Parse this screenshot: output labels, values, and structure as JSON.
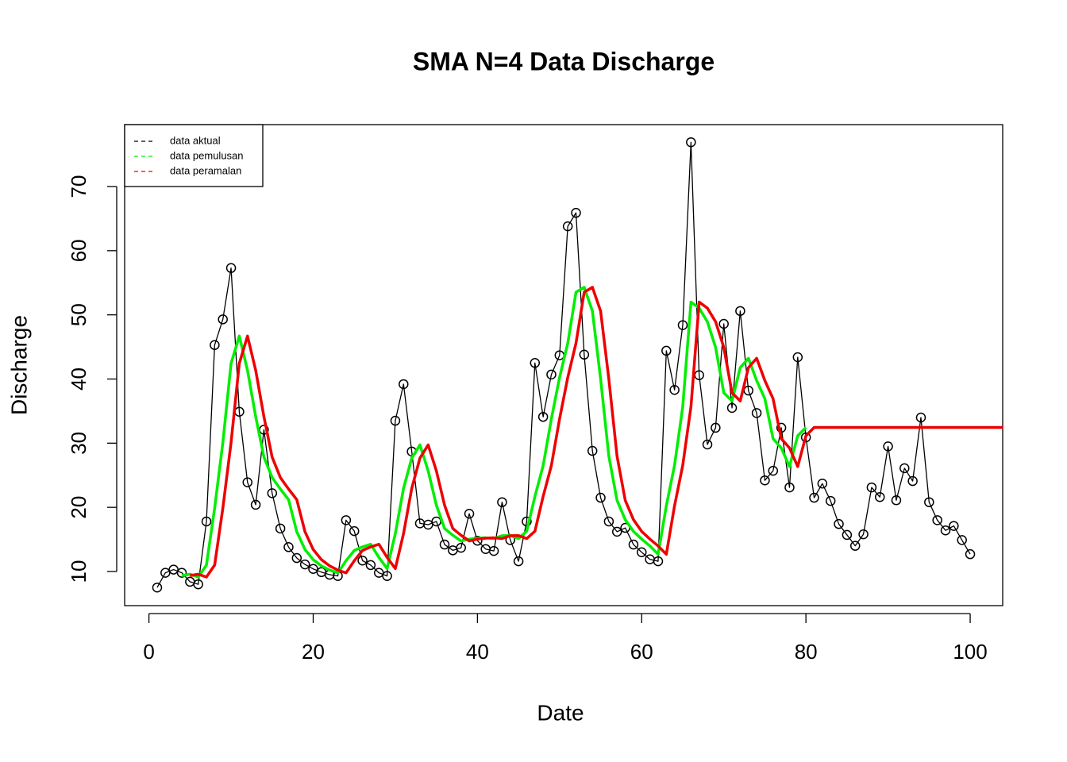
{
  "chart_data": {
    "type": "line",
    "title": "SMA N=4 Data Discharge",
    "x_label": "Date",
    "y_label": "Discharge",
    "xlim": [
      -2.96,
      103.96
    ],
    "ylim": [
      4.68,
      79.65
    ],
    "xticks": [
      0,
      20,
      40,
      60,
      80,
      100
    ],
    "yticks": [
      10,
      20,
      30,
      40,
      50,
      60,
      70
    ],
    "legend_position": "top-left",
    "series": [
      {
        "name": "data aktual",
        "color": "#000000",
        "markers": true,
        "x": [
          1,
          2,
          3,
          4,
          5,
          6,
          7,
          8,
          9,
          10,
          11,
          12,
          13,
          14,
          15,
          16,
          17,
          18,
          19,
          20,
          21,
          22,
          23,
          24,
          25,
          26,
          27,
          28,
          29,
          30,
          31,
          32,
          33,
          34,
          35,
          36,
          37,
          38,
          39,
          40,
          41,
          42,
          43,
          44,
          45,
          46,
          47,
          48,
          49,
          50,
          51,
          52,
          53,
          54,
          55,
          56,
          57,
          58,
          59,
          60,
          61,
          62,
          63,
          64,
          65,
          66,
          67,
          68,
          69,
          70,
          71,
          72,
          73,
          74,
          75,
          76,
          77,
          78,
          79,
          80,
          81,
          82,
          83,
          84,
          85,
          86,
          87,
          88,
          89,
          90,
          91,
          92,
          93,
          94,
          95,
          96,
          97,
          98,
          99,
          100
        ],
        "values": [
          7.5,
          9.8,
          10.3,
          9.8,
          8.4,
          8.0,
          17.8,
          45.3,
          49.3,
          57.3,
          34.9,
          23.9,
          20.4,
          32.1,
          22.2,
          16.7,
          13.8,
          12.1,
          11.1,
          10.4,
          9.9,
          9.5,
          9.3,
          18.0,
          16.3,
          11.7,
          11.0,
          9.8,
          9.3,
          33.5,
          39.2,
          28.7,
          17.5,
          17.3,
          17.8,
          14.2,
          13.3,
          13.7,
          19.0,
          14.8,
          13.5,
          13.2,
          20.8,
          14.9,
          11.6,
          17.8,
          42.5,
          34.1,
          40.7,
          43.7,
          63.8,
          65.9,
          43.8,
          28.8,
          21.5,
          17.8,
          16.2,
          16.8,
          14.2,
          13.0,
          11.9,
          11.6,
          44.4,
          38.3,
          48.4,
          76.9,
          40.6,
          29.8,
          32.4,
          48.6,
          35.5,
          50.6,
          38.2,
          34.7,
          24.2,
          25.7,
          32.4,
          23.1,
          43.4,
          30.9,
          21.5,
          23.7,
          21.0,
          17.4,
          15.7,
          14.0,
          15.8,
          23.1,
          21.6,
          29.5,
          21.1,
          26.1,
          24.1,
          34.0,
          20.8,
          18.0,
          16.4,
          17.1,
          14.9,
          12.7
        ]
      },
      {
        "name": "data pemulusan",
        "color": "#00ee00",
        "markers": false,
        "x": [
          4,
          5,
          6,
          7,
          8,
          9,
          10,
          11,
          12,
          13,
          14,
          15,
          16,
          17,
          18,
          19,
          20,
          21,
          22,
          23,
          24,
          25,
          26,
          27,
          28,
          29,
          30,
          31,
          32,
          33,
          34,
          35,
          36,
          37,
          38,
          39,
          40,
          41,
          42,
          43,
          44,
          45,
          46,
          47,
          48,
          49,
          50,
          51,
          52,
          53,
          54,
          55,
          56,
          57,
          58,
          59,
          60,
          61,
          62,
          63,
          64,
          65,
          66,
          67,
          68,
          69,
          70,
          71,
          72,
          73,
          74,
          75,
          76,
          77,
          78,
          79,
          80
        ],
        "values": [
          9.35,
          9.58,
          9.13,
          11.0,
          19.88,
          30.1,
          42.43,
          46.7,
          41.35,
          34.13,
          27.83,
          24.65,
          22.85,
          21.2,
          16.2,
          13.43,
          11.85,
          10.88,
          10.23,
          9.78,
          11.68,
          13.28,
          13.83,
          14.25,
          12.2,
          10.45,
          15.9,
          22.95,
          27.68,
          29.73,
          25.68,
          20.33,
          16.7,
          15.65,
          14.75,
          15.05,
          15.2,
          15.25,
          15.13,
          15.58,
          15.6,
          15.13,
          16.28,
          21.7,
          26.5,
          33.78,
          40.25,
          45.58,
          53.53,
          54.3,
          50.58,
          40.0,
          27.98,
          21.08,
          18.08,
          16.25,
          15.05,
          13.98,
          12.68,
          20.23,
          26.55,
          35.68,
          52.0,
          51.05,
          48.93,
          44.93,
          37.85,
          36.58,
          41.78,
          43.23,
          39.75,
          36.93,
          30.7,
          29.25,
          26.35,
          31.15,
          32.45
        ]
      },
      {
        "name": "data peramalan",
        "color": "#ee0000",
        "markers": false,
        "x": [
          5,
          6,
          7,
          8,
          9,
          10,
          11,
          12,
          13,
          14,
          15,
          16,
          17,
          18,
          19,
          20,
          21,
          22,
          23,
          24,
          25,
          26,
          27,
          28,
          29,
          30,
          31,
          32,
          33,
          34,
          35,
          36,
          37,
          38,
          39,
          40,
          41,
          42,
          43,
          44,
          45,
          46,
          47,
          48,
          49,
          50,
          51,
          52,
          53,
          54,
          55,
          56,
          57,
          58,
          59,
          60,
          61,
          62,
          63,
          64,
          65,
          66,
          67,
          68,
          69,
          70,
          71,
          72,
          73,
          74,
          75,
          76,
          77,
          78,
          79,
          80,
          81,
          104
        ],
        "values": [
          9.35,
          9.58,
          9.13,
          11.0,
          19.88,
          30.1,
          42.43,
          46.7,
          41.35,
          34.13,
          27.83,
          24.65,
          22.85,
          21.2,
          16.2,
          13.43,
          11.85,
          10.88,
          10.23,
          9.78,
          11.68,
          13.28,
          13.83,
          14.25,
          12.2,
          10.45,
          15.9,
          22.95,
          27.68,
          29.73,
          25.68,
          20.33,
          16.7,
          15.65,
          14.75,
          15.05,
          15.2,
          15.25,
          15.13,
          15.58,
          15.6,
          15.13,
          16.28,
          21.7,
          26.5,
          33.78,
          40.25,
          45.58,
          53.53,
          54.3,
          50.58,
          40.0,
          27.98,
          21.08,
          18.08,
          16.25,
          15.05,
          13.98,
          12.68,
          20.23,
          26.55,
          35.68,
          52.0,
          51.05,
          48.93,
          44.93,
          37.85,
          36.58,
          41.78,
          43.23,
          39.75,
          36.93,
          30.7,
          29.25,
          26.35,
          31.15,
          32.45,
          32.45
        ]
      }
    ]
  }
}
